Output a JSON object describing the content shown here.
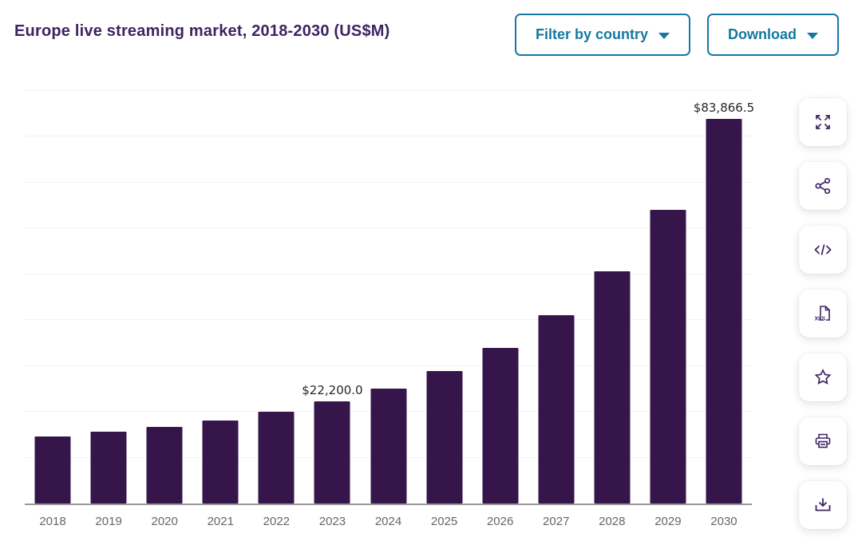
{
  "header": {
    "title": "Europe live streaming market, 2018-2030 (US$M)",
    "filter_button": {
      "label": "Filter by country"
    },
    "download_button": {
      "label": "Download"
    }
  },
  "toolbar": {
    "items": [
      {
        "name": "fullscreen",
        "icon": "expand-icon"
      },
      {
        "name": "share",
        "icon": "share-icon"
      },
      {
        "name": "embed-code",
        "icon": "code-icon"
      },
      {
        "name": "download-xls",
        "icon": "xls-file-icon",
        "xls_label": "XLS"
      },
      {
        "name": "favorite",
        "icon": "star-icon"
      },
      {
        "name": "print",
        "icon": "printer-icon"
      },
      {
        "name": "download-image",
        "icon": "download-icon"
      }
    ]
  },
  "chart_data": {
    "type": "bar",
    "title": "Europe live streaming market, 2018-2030 (US$M)",
    "categories": [
      "2018",
      "2019",
      "2020",
      "2021",
      "2022",
      "2023",
      "2024",
      "2025",
      "2026",
      "2027",
      "2028",
      "2029",
      "2030"
    ],
    "values": [
      14700,
      15700,
      16800,
      18100,
      20100,
      22200.0,
      25100,
      28900,
      34000,
      41100,
      50600,
      64100,
      83866.5
    ],
    "point_labels": [
      null,
      null,
      null,
      null,
      null,
      "$22,200.0",
      null,
      null,
      null,
      null,
      null,
      null,
      "$83,866.5"
    ],
    "xlabel": "",
    "ylabel": "",
    "ylim": [
      0,
      90000
    ],
    "grid_step": 10000,
    "grid": true,
    "legend": false
  },
  "colors": {
    "bar": "#36154a",
    "title_text": "#3d2462",
    "accent_teal": "#15799f",
    "button_border": "#1878a8",
    "axis_line": "#999999",
    "gridline": "#f2f2f2",
    "axis_label": "#666666",
    "data_label": "#262626",
    "icon": "#3d2462"
  }
}
